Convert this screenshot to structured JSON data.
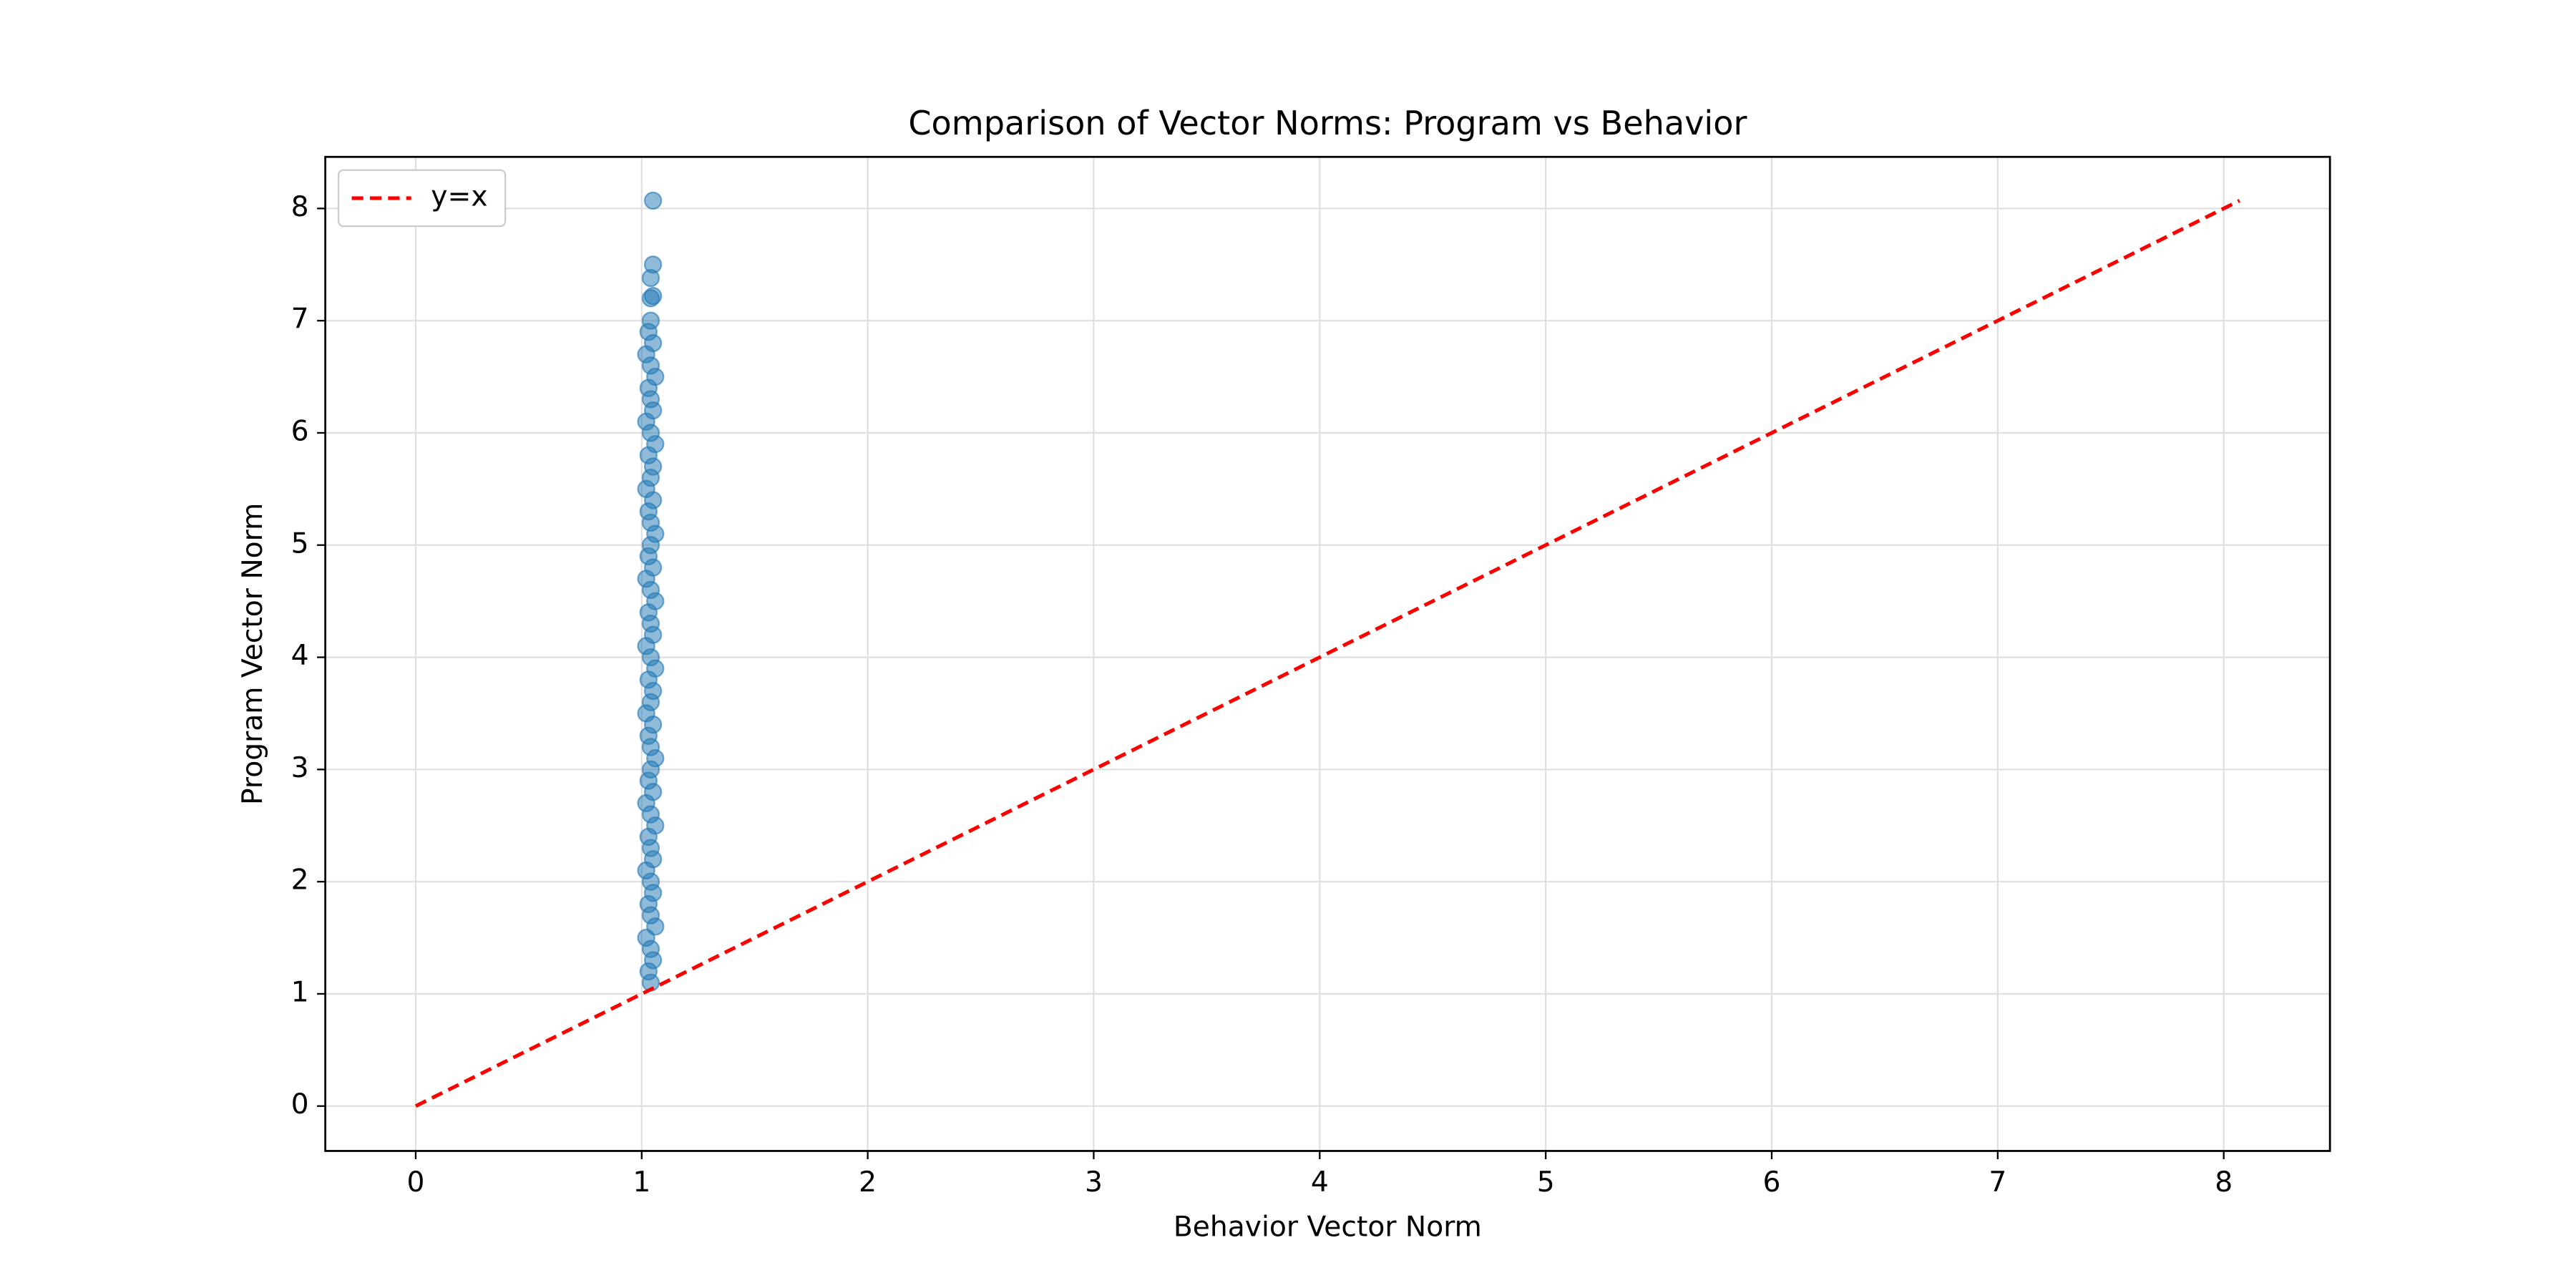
{
  "chart_data": {
    "type": "scatter",
    "title": "Comparison of Vector Norms: Program vs Behavior",
    "x_label": "Behavior Vector Norm",
    "y_label": "Program Vector Norm",
    "xlim": [
      -0.4,
      8.47
    ],
    "ylim": [
      -0.4,
      8.46
    ],
    "xticks": [
      0,
      1,
      2,
      3,
      4,
      5,
      6,
      7,
      8
    ],
    "yticks": [
      0,
      1,
      2,
      3,
      4,
      5,
      6,
      7,
      8
    ],
    "grid": true,
    "legend": "upper left",
    "series": [
      {
        "type": "scatter",
        "color": "#1f77b4",
        "x": [
          1.04,
          1.03,
          1.05,
          1.04,
          1.02,
          1.06,
          1.04,
          1.03,
          1.05,
          1.04,
          1.02,
          1.05,
          1.04,
          1.03,
          1.06,
          1.04,
          1.02,
          1.05,
          1.03,
          1.04,
          1.06,
          1.04,
          1.03,
          1.05,
          1.02,
          1.04,
          1.05,
          1.03,
          1.06,
          1.04,
          1.02,
          1.05,
          1.04,
          1.03,
          1.06,
          1.04,
          1.02,
          1.05,
          1.03,
          1.04,
          1.06,
          1.04,
          1.03,
          1.05,
          1.02,
          1.04,
          1.05,
          1.03,
          1.06,
          1.04,
          1.02,
          1.05,
          1.04,
          1.03,
          1.06,
          1.04,
          1.02,
          1.05,
          1.03,
          1.04,
          1.04,
          1.05,
          1.04,
          1.05,
          1.05
        ],
        "y": [
          1.1,
          1.2,
          1.3,
          1.4,
          1.5,
          1.6,
          1.7,
          1.8,
          1.9,
          2.0,
          2.1,
          2.2,
          2.3,
          2.4,
          2.5,
          2.6,
          2.7,
          2.8,
          2.9,
          3.0,
          3.1,
          3.2,
          3.3,
          3.4,
          3.5,
          3.6,
          3.7,
          3.8,
          3.9,
          4.0,
          4.1,
          4.2,
          4.3,
          4.4,
          4.5,
          4.6,
          4.7,
          4.8,
          4.9,
          5.0,
          5.1,
          5.2,
          5.3,
          5.4,
          5.5,
          5.6,
          5.7,
          5.8,
          5.9,
          6.0,
          6.1,
          6.2,
          6.3,
          6.4,
          6.5,
          6.6,
          6.7,
          6.8,
          6.9,
          7.0,
          7.2,
          7.22,
          7.38,
          7.5,
          8.07
        ]
      },
      {
        "type": "line",
        "name": "y=x",
        "color": "#ff0000",
        "dashed": true,
        "x": [
          0,
          8.07
        ],
        "y": [
          0,
          8.07
        ]
      }
    ]
  }
}
